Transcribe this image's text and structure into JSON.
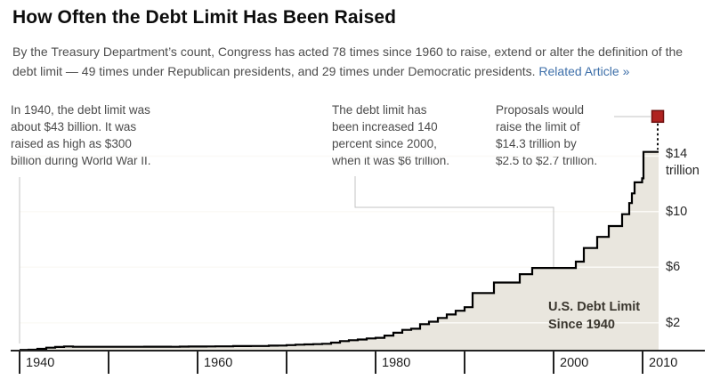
{
  "header": {
    "title": "How Often the Debt Limit Has Been Raised",
    "subtitle": "By the Treasury Department’s count, Congress has acted 78 times since 1960 to raise, extend or alter the definition of the\ndebt limit — 49 times under Republican presidents, and 29 times under Democratic presidents.",
    "related_link": "Related Article »",
    "link_color": "#3e6fa9"
  },
  "annotations": [
    {
      "id": "ann-1940",
      "text": "In 1940, the debt limit was\nabout $43 billion. It was\nraised as high as $300\nbillion during World War II."
    },
    {
      "id": "ann-2000",
      "text": "The debt limit has\nbeen increased 140\npercent since 2000,\nwhen it was $6 trillion."
    },
    {
      "id": "ann-proposal",
      "text": "Proposals would\nraise the limit of\n$14.3 trillion by\n$2.5 to $2.7 trillion."
    }
  ],
  "chart_label": "U.S. Debt Limit\nSince 1940",
  "chart_data": {
    "type": "area",
    "title": "U.S. Debt Limit Since 1940",
    "units": "trillions of US dollars",
    "x_range": [
      1940,
      2011.8
    ],
    "y_range": [
      0,
      17
    ],
    "grid": true,
    "gridline_color": "#fbfaf6",
    "x_ticks": [
      1940,
      1950,
      1960,
      1970,
      1980,
      1990,
      2000,
      2010
    ],
    "x_tick_labels": [
      {
        "year": 1940,
        "label": "1940"
      },
      {
        "year": 1960,
        "label": "1960"
      },
      {
        "year": 1980,
        "label": "1980"
      },
      {
        "year": 2000,
        "label": "2000"
      },
      {
        "year": 2010,
        "label": "2010"
      }
    ],
    "y_gridlines": [
      2,
      6,
      10,
      14
    ],
    "y_labels": [
      {
        "value": 14,
        "label": "$14\ntrillion"
      },
      {
        "value": 10,
        "label": "$10"
      },
      {
        "value": 6,
        "label": "$6"
      },
      {
        "value": 2,
        "label": "$2"
      }
    ],
    "series": [
      {
        "name": "U.S. statutory debt limit",
        "line_color": "#000000",
        "fill_color": "#e9e6de",
        "points": [
          [
            1940,
            0.049
          ],
          [
            1941,
            0.065
          ],
          [
            1942,
            0.125
          ],
          [
            1943,
            0.21
          ],
          [
            1944,
            0.26
          ],
          [
            1945,
            0.3
          ],
          [
            1946,
            0.275
          ],
          [
            1954,
            0.281
          ],
          [
            1957,
            0.275
          ],
          [
            1958,
            0.288
          ],
          [
            1959,
            0.295
          ],
          [
            1961,
            0.298
          ],
          [
            1962,
            0.308
          ],
          [
            1963,
            0.31
          ],
          [
            1964,
            0.324
          ],
          [
            1965,
            0.328
          ],
          [
            1966,
            0.33
          ],
          [
            1967,
            0.336
          ],
          [
            1968,
            0.358
          ],
          [
            1969,
            0.365
          ],
          [
            1970,
            0.395
          ],
          [
            1971,
            0.43
          ],
          [
            1972,
            0.45
          ],
          [
            1973,
            0.465
          ],
          [
            1974,
            0.495
          ],
          [
            1975,
            0.577
          ],
          [
            1976,
            0.682
          ],
          [
            1977,
            0.752
          ],
          [
            1978,
            0.798
          ],
          [
            1979,
            0.879
          ],
          [
            1980,
            0.925
          ],
          [
            1981,
            1.079
          ],
          [
            1982,
            1.29
          ],
          [
            1983,
            1.49
          ],
          [
            1984,
            1.573
          ],
          [
            1985,
            1.904
          ],
          [
            1986,
            2.079
          ],
          [
            1987,
            2.352
          ],
          [
            1988,
            2.6
          ],
          [
            1989,
            2.87
          ],
          [
            1990,
            3.123
          ],
          [
            1990.9,
            4.145
          ],
          [
            1993.3,
            4.9
          ],
          [
            1996.2,
            5.5
          ],
          [
            1997.6,
            5.95
          ],
          [
            2002.5,
            6.4
          ],
          [
            2003.4,
            7.384
          ],
          [
            2004.9,
            8.184
          ],
          [
            2006.2,
            8.965
          ],
          [
            2007.7,
            9.815
          ],
          [
            2008.5,
            10.615
          ],
          [
            2008.8,
            11.315
          ],
          [
            2009.1,
            12.104
          ],
          [
            2009.95,
            12.394
          ],
          [
            2010.1,
            14.294
          ]
        ]
      }
    ],
    "proposal_marker": {
      "year": 2011.7,
      "value": 16.85,
      "color": "#b02321",
      "border": "#6e1110"
    }
  }
}
